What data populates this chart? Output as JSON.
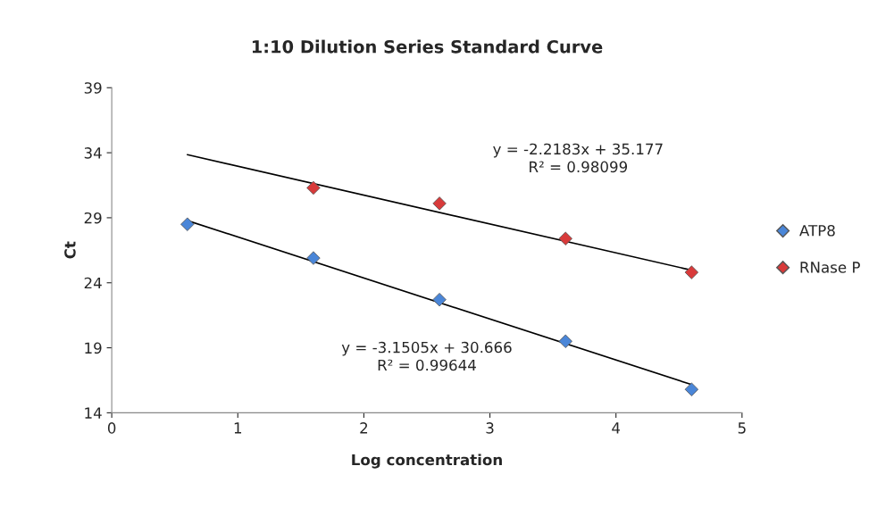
{
  "chart_data": {
    "type": "scatter",
    "title": "1:10 Dilution Series Standard Curve",
    "xlabel": "Log concentration",
    "ylabel": "Ct",
    "series": [
      {
        "name": "ATP8",
        "color": "#4a86d8",
        "marker": "diamond",
        "x": [
          0.6,
          1.6,
          2.6,
          3.6,
          4.6
        ],
        "values": [
          28.5,
          25.9,
          22.7,
          19.5,
          15.8
        ]
      },
      {
        "name": "RNase P",
        "color": "#d83a3a",
        "marker": "diamond",
        "x": [
          1.6,
          2.6,
          3.6,
          4.6
        ],
        "values": [
          31.3,
          30.1,
          27.4,
          24.8
        ]
      },
      {
        "type": "line",
        "color": "#000000",
        "x": [
          0.6,
          4.6
        ],
        "values": [
          28.78,
          16.17
        ]
      },
      {
        "type": "line",
        "color": "#000000",
        "x": [
          0.6,
          4.6
        ],
        "values": [
          33.85,
          24.97
        ]
      }
    ],
    "annotations": [
      "y = -2.2183x + 35.177\nR² = 0.98099",
      "y = -3.1505x + 30.666\nR² = 0.99644"
    ],
    "xlim": [
      0,
      5
    ],
    "xticks": [
      0,
      1,
      2,
      3,
      4,
      5
    ],
    "ylim": [
      14,
      39
    ],
    "yticks": [
      14,
      19,
      24,
      29,
      34,
      39
    ],
    "legend": "right",
    "grid": false
  }
}
